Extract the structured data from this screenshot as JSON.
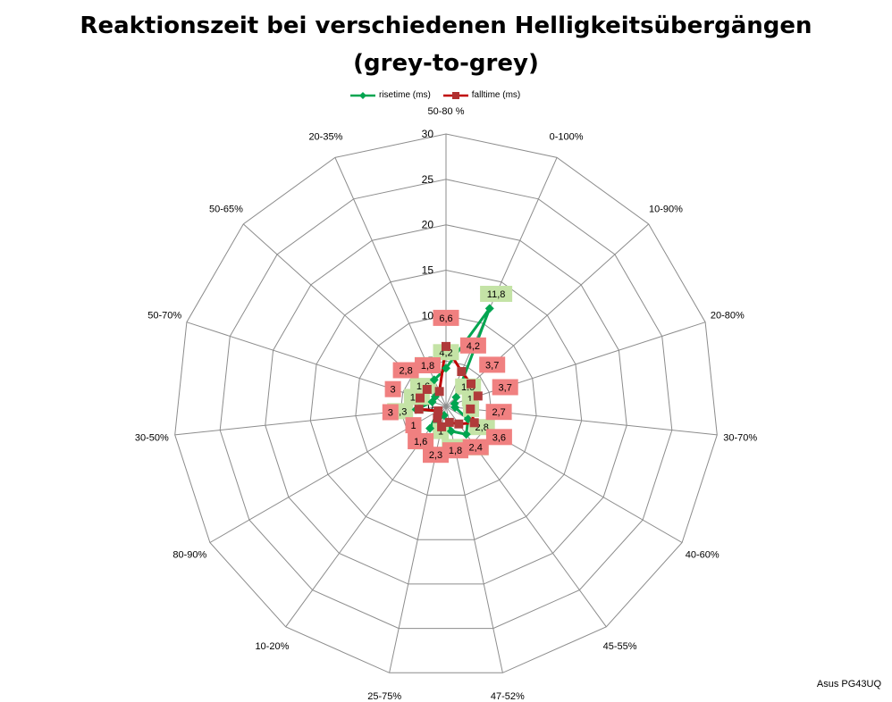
{
  "chart_data": {
    "type": "radar",
    "title": "Reaktionszeit bei verschiedenen Helligkeitsübergängen",
    "subtitle": "(grey-to-grey)",
    "categories": [
      "50-80 %",
      "0-100%",
      "10-90%",
      "20-80%",
      "30-70%",
      "40-60%",
      "45-55%",
      "47-52%",
      "25-75%",
      "10-20%",
      "80-90%",
      "30-50%",
      "50-70%",
      "50-65%",
      "20-35%"
    ],
    "rlim": [
      0,
      30
    ],
    "ticks": [
      0,
      5,
      10,
      15,
      20,
      25,
      30
    ],
    "grid": true,
    "legend_position": "top",
    "series": [
      {
        "name": "risetime (ms)",
        "color": "#00a550",
        "label_color": "#c4e3a6",
        "marker": "diamond",
        "values": [
          4.2,
          11.8,
          1.5,
          1,
          1,
          2.8,
          3.8,
          2.8,
          1,
          3,
          1,
          3.3,
          1.6,
          1.6,
          3.2
        ],
        "labels": [
          "4,2",
          "11,8",
          "1,5",
          "1",
          "1",
          "2,8",
          "3,8",
          "2,8",
          "1",
          "3",
          "",
          "3,3",
          "1,6",
          "1,6",
          "3,2"
        ]
      },
      {
        "name": "falltime (ms)",
        "color": "#c00000",
        "label_color": "#f08080",
        "marker": "square",
        "values": [
          6.6,
          4.2,
          3.7,
          3.7,
          2.7,
          3.6,
          2.4,
          1.8,
          2.3,
          1.6,
          1,
          3,
          3,
          2.8,
          1.8
        ],
        "labels": [
          "6,6",
          "4,2",
          "3,7",
          "3,7",
          "2,7",
          "3,6",
          "2,4",
          "1,8",
          "2,3",
          "1,6",
          "1",
          "3",
          "3",
          "2,8",
          "1,8"
        ]
      }
    ]
  },
  "footer": {
    "model": "Asus PG43UQ"
  }
}
